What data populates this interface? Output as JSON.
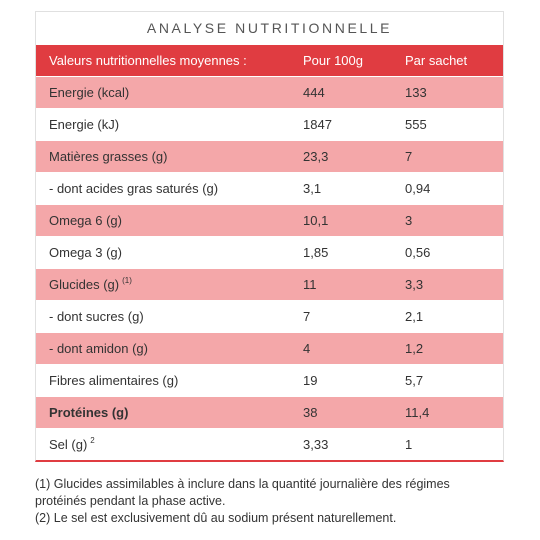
{
  "table": {
    "title": "ANALYSE NUTRITIONNELLE",
    "header": {
      "c1": "Valeurs nutritionnelles moyennes :",
      "c2": "Pour 100g",
      "c3": "Par sachet"
    },
    "rows": [
      {
        "c1": "Energie (kcal)",
        "sup": "",
        "c2": "444",
        "c3": "133"
      },
      {
        "c1": "Energie (kJ)",
        "sup": "",
        "c2": "1847",
        "c3": "555"
      },
      {
        "c1": "Matières grasses (g)",
        "sup": "",
        "c2": "23,3",
        "c3": "7"
      },
      {
        "c1": "- dont acides gras saturés (g)",
        "sup": "",
        "c2": "3,1",
        "c3": "0,94"
      },
      {
        "c1": "Omega 6 (g)",
        "sup": "",
        "c2": "10,1",
        "c3": "3"
      },
      {
        "c1": "Omega 3 (g)",
        "sup": "",
        "c2": "1,85",
        "c3": "0,56"
      },
      {
        "c1": "Glucides (g)",
        "sup": "(1)",
        "c2": "11",
        "c3": "3,3"
      },
      {
        "c1": "- dont sucres (g)",
        "sup": "",
        "c2": "7",
        "c3": "2,1"
      },
      {
        "c1": "- dont amidon (g)",
        "sup": "",
        "c2": "4",
        "c3": "1,2"
      },
      {
        "c1": "Fibres alimentaires (g)",
        "sup": "",
        "c2": "19",
        "c3": "5,7"
      },
      {
        "c1": "Protéines (g)",
        "sup": "",
        "c2": "38",
        "c3": "11,4"
      },
      {
        "c1": "Sel (g)",
        "sup": "2",
        "c2": "3,33",
        "c3": "1"
      }
    ]
  },
  "footnotes": {
    "line1": "(1) Glucides assimilables à inclure dans la quantité journalière des régimes protéinés pendant la phase active.",
    "line2": "(2) Le sel est exclusivement dû au sodium présent naturellement."
  },
  "colors": {
    "header": "#e03c41",
    "pink_row": "#f4a7a9",
    "white_row": "#ffffff"
  }
}
